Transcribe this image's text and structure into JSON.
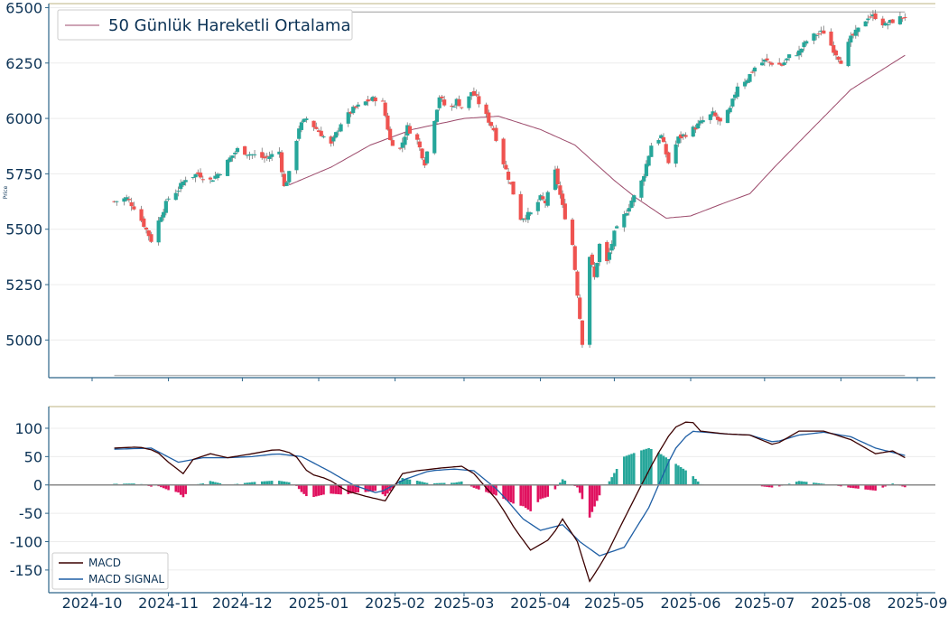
{
  "colors": {
    "text": "#0c3356",
    "axis": "#2c6589",
    "grid": "#ececec",
    "top_border": "#cbc29a",
    "up": "#26a69a",
    "down": "#ef5350",
    "wick": "#777777",
    "ma": "#9c4a6b",
    "support_line": "#b8b8b8",
    "macd": "#3b0000",
    "signal": "#1f5fa5",
    "hist_pos": "#26a69a",
    "hist_neg": "#e0115f",
    "zero_line": "#888888"
  },
  "chart_data": [
    {
      "type": "candlestick",
      "ylabel": "Price",
      "ylim": [
        4830,
        6510
      ],
      "yticks": [
        5000,
        5250,
        5500,
        5750,
        6000,
        6250,
        6500
      ],
      "grid": true,
      "legend": {
        "placement": "top-left",
        "entries": [
          "50 Günlük Hareketli Ortalama"
        ]
      },
      "date_range": [
        "2024-10-10",
        "2025-08-27"
      ],
      "close_anchors": [
        [
          "2024-10-10",
          5625
        ],
        [
          "2024-10-15",
          5640
        ],
        [
          "2024-10-18",
          5600
        ],
        [
          "2024-10-22",
          5520
        ],
        [
          "2024-10-25",
          5450
        ],
        [
          "2024-10-29",
          5565
        ],
        [
          "2024-11-01",
          5640
        ],
        [
          "2024-11-05",
          5680
        ],
        [
          "2024-11-08",
          5730
        ],
        [
          "2024-11-13",
          5750
        ],
        [
          "2024-11-18",
          5720
        ],
        [
          "2024-11-22",
          5760
        ],
        [
          "2024-11-26",
          5820
        ],
        [
          "2024-11-29",
          5860
        ],
        [
          "2024-12-04",
          5840
        ],
        [
          "2024-12-10",
          5820
        ],
        [
          "2024-12-16",
          5850
        ],
        [
          "2024-12-18",
          5690
        ],
        [
          "2024-12-20",
          5750
        ],
        [
          "2024-12-24",
          5960
        ],
        [
          "2024-12-27",
          6000
        ],
        [
          "2025-01-02",
          5930
        ],
        [
          "2025-01-06",
          5880
        ],
        [
          "2025-01-10",
          5980
        ],
        [
          "2025-01-15",
          6040
        ],
        [
          "2025-01-21",
          6080
        ],
        [
          "2025-01-24",
          6090
        ],
        [
          "2025-01-27",
          6070
        ],
        [
          "2025-01-30",
          5900
        ],
        [
          "2025-02-03",
          5860
        ],
        [
          "2025-02-06",
          5960
        ],
        [
          "2025-02-10",
          5900
        ],
        [
          "2025-02-13",
          5800
        ],
        [
          "2025-02-16",
          5950
        ],
        [
          "2025-02-19",
          6100
        ],
        [
          "2025-02-21",
          6060
        ],
        [
          "2025-02-24",
          6050
        ],
        [
          "2025-02-26",
          6080
        ],
        [
          "2025-03-01",
          6040
        ],
        [
          "2025-03-04",
          6120
        ],
        [
          "2025-03-06",
          6090
        ],
        [
          "2025-03-10",
          6010
        ],
        [
          "2025-03-13",
          5950
        ],
        [
          "2025-03-17",
          5800
        ],
        [
          "2025-03-20",
          5700
        ],
        [
          "2025-03-24",
          5550
        ],
        [
          "2025-03-28",
          5570
        ],
        [
          "2025-04-01",
          5640
        ],
        [
          "2025-04-03",
          5620
        ],
        [
          "2025-04-07",
          5760
        ],
        [
          "2025-04-10",
          5600
        ],
        [
          "2025-04-14",
          5430
        ],
        [
          "2025-04-18",
          4990
        ],
        [
          "2025-04-21",
          5380
        ],
        [
          "2025-04-23",
          5280
        ],
        [
          "2025-04-25",
          5430
        ],
        [
          "2025-04-28",
          5350
        ],
        [
          "2025-05-01",
          5480
        ],
        [
          "2025-05-05",
          5560
        ],
        [
          "2025-05-08",
          5630
        ],
        [
          "2025-05-11",
          5680
        ],
        [
          "2025-05-13",
          5750
        ],
        [
          "2025-05-16",
          5880
        ],
        [
          "2025-05-20",
          5920
        ],
        [
          "2025-05-23",
          5800
        ],
        [
          "2025-05-27",
          5910
        ],
        [
          "2025-05-30",
          5930
        ],
        [
          "2025-06-03",
          5960
        ],
        [
          "2025-06-06",
          5990
        ],
        [
          "2025-06-10",
          6020
        ],
        [
          "2025-06-13",
          5980
        ],
        [
          "2025-06-17",
          6040
        ],
        [
          "2025-06-20",
          6150
        ],
        [
          "2025-06-24",
          6180
        ],
        [
          "2025-06-27",
          6230
        ],
        [
          "2025-07-01",
          6260
        ],
        [
          "2025-07-04",
          6250
        ],
        [
          "2025-07-08",
          6240
        ],
        [
          "2025-07-11",
          6280
        ],
        [
          "2025-07-15",
          6300
        ],
        [
          "2025-07-18",
          6350
        ],
        [
          "2025-07-22",
          6380
        ],
        [
          "2025-07-25",
          6390
        ],
        [
          "2025-07-29",
          6310
        ],
        [
          "2025-08-01",
          6260
        ],
        [
          "2025-08-05",
          6360
        ],
        [
          "2025-08-08",
          6400
        ],
        [
          "2025-08-12",
          6460
        ],
        [
          "2025-08-15",
          6460
        ],
        [
          "2025-08-19",
          6420
        ],
        [
          "2025-08-22",
          6440
        ],
        [
          "2025-08-27",
          6460
        ]
      ],
      "ma50_anchors": [
        [
          "2024-12-20",
          5700
        ],
        [
          "2025-01-06",
          5780
        ],
        [
          "2025-01-22",
          5880
        ],
        [
          "2025-02-08",
          5950
        ],
        [
          "2025-03-01",
          6000
        ],
        [
          "2025-03-15",
          6010
        ],
        [
          "2025-04-01",
          5950
        ],
        [
          "2025-04-15",
          5880
        ],
        [
          "2025-05-01",
          5720
        ],
        [
          "2025-05-10",
          5640
        ],
        [
          "2025-05-22",
          5550
        ],
        [
          "2025-06-01",
          5560
        ],
        [
          "2025-06-15",
          5620
        ],
        [
          "2025-06-25",
          5660
        ],
        [
          "2025-07-05",
          5780
        ],
        [
          "2025-07-20",
          5950
        ],
        [
          "2025-08-05",
          6130
        ],
        [
          "2025-08-27",
          6285
        ]
      ],
      "support_lines": [
        6480,
        4840
      ]
    },
    {
      "type": "line",
      "ylim": [
        -190,
        135
      ],
      "yticks": [
        -150,
        -100,
        -50,
        0,
        50,
        100
      ],
      "grid": true,
      "legend": {
        "placement": "bottom-left",
        "entries": [
          "MACD",
          "MACD SIGNAL"
        ]
      },
      "xticks": [
        "2024-10",
        "2024-11",
        "2024-12",
        "2025-01",
        "2025-02",
        "2025-03",
        "2025-04",
        "2025-05",
        "2025-06",
        "2025-07",
        "2025-08",
        "2025-09"
      ],
      "macd_anchors": [
        [
          "2024-10-10",
          65
        ],
        [
          "2024-10-20",
          67
        ],
        [
          "2024-10-27",
          60
        ],
        [
          "2024-11-01",
          40
        ],
        [
          "2024-11-07",
          20
        ],
        [
          "2024-11-11",
          45
        ],
        [
          "2024-11-18",
          55
        ],
        [
          "2024-11-25",
          48
        ],
        [
          "2024-12-05",
          55
        ],
        [
          "2024-12-15",
          63
        ],
        [
          "2024-12-22",
          55
        ],
        [
          "2024-12-28",
          20
        ],
        [
          "2025-01-05",
          10
        ],
        [
          "2025-01-12",
          -10
        ],
        [
          "2025-01-20",
          -20
        ],
        [
          "2025-01-28",
          -28
        ],
        [
          "2025-02-04",
          20
        ],
        [
          "2025-02-10",
          25
        ],
        [
          "2025-02-20",
          30
        ],
        [
          "2025-02-28",
          33
        ],
        [
          "2025-03-05",
          20
        ],
        [
          "2025-03-15",
          -30
        ],
        [
          "2025-03-22",
          -80
        ],
        [
          "2025-03-28",
          -115
        ],
        [
          "2025-04-05",
          -95
        ],
        [
          "2025-04-10",
          -60
        ],
        [
          "2025-04-16",
          -100
        ],
        [
          "2025-04-21",
          -170
        ],
        [
          "2025-04-27",
          -130
        ],
        [
          "2025-05-05",
          -60
        ],
        [
          "2025-05-12",
          0
        ],
        [
          "2025-05-18",
          50
        ],
        [
          "2025-05-25",
          100
        ],
        [
          "2025-06-01",
          115
        ],
        [
          "2025-06-05",
          95
        ],
        [
          "2025-06-15",
          90
        ],
        [
          "2025-06-25",
          88
        ],
        [
          "2025-07-05",
          70
        ],
        [
          "2025-07-15",
          95
        ],
        [
          "2025-07-25",
          95
        ],
        [
          "2025-08-05",
          80
        ],
        [
          "2025-08-15",
          55
        ],
        [
          "2025-08-22",
          60
        ],
        [
          "2025-08-27",
          48
        ]
      ],
      "signal_anchors": [
        [
          "2024-10-10",
          63
        ],
        [
          "2024-10-25",
          65
        ],
        [
          "2024-11-05",
          40
        ],
        [
          "2024-11-15",
          48
        ],
        [
          "2024-11-25",
          48
        ],
        [
          "2024-12-05",
          50
        ],
        [
          "2024-12-15",
          55
        ],
        [
          "2024-12-25",
          50
        ],
        [
          "2025-01-05",
          25
        ],
        [
          "2025-01-15",
          0
        ],
        [
          "2025-01-25",
          -15
        ],
        [
          "2025-02-05",
          10
        ],
        [
          "2025-02-15",
          25
        ],
        [
          "2025-02-25",
          28
        ],
        [
          "2025-03-05",
          25
        ],
        [
          "2025-03-15",
          -10
        ],
        [
          "2025-03-25",
          -60
        ],
        [
          "2025-04-01",
          -80
        ],
        [
          "2025-04-10",
          -70
        ],
        [
          "2025-04-17",
          -100
        ],
        [
          "2025-04-25",
          -125
        ],
        [
          "2025-05-05",
          -110
        ],
        [
          "2025-05-15",
          -40
        ],
        [
          "2025-05-25",
          60
        ],
        [
          "2025-06-01",
          95
        ],
        [
          "2025-06-15",
          90
        ],
        [
          "2025-06-25",
          88
        ],
        [
          "2025-07-05",
          75
        ],
        [
          "2025-07-15",
          88
        ],
        [
          "2025-07-25",
          93
        ],
        [
          "2025-08-05",
          85
        ],
        [
          "2025-08-15",
          65
        ],
        [
          "2025-08-27",
          52
        ]
      ]
    }
  ]
}
